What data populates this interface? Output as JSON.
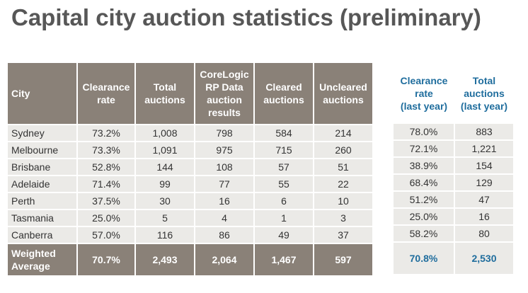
{
  "title": "Capital city auction statistics (preliminary)",
  "headers": {
    "city": "City",
    "clearance_rate": [
      "Clearance",
      "rate"
    ],
    "total_auctions": [
      "Total",
      "auctions"
    ],
    "corelogic": [
      "CoreLogic",
      "RP Data",
      "auction",
      "results"
    ],
    "cleared": [
      "Cleared",
      "auctions"
    ],
    "uncleared": [
      "Uncleared",
      "auctions"
    ],
    "ly_rate": [
      "Clearance",
      "rate",
      "(last year)"
    ],
    "ly_total": [
      "Total",
      "auctions",
      "(last year)"
    ]
  },
  "rows": [
    {
      "city": "Sydney",
      "rate": "73.2%",
      "total": "1,008",
      "core": "798",
      "cleared": "584",
      "uncleared": "214",
      "ly_rate": "78.0%",
      "ly_total": "883"
    },
    {
      "city": "Melbourne",
      "rate": "73.3%",
      "total": "1,091",
      "core": "975",
      "cleared": "715",
      "uncleared": "260",
      "ly_rate": "72.1%",
      "ly_total": "1,221"
    },
    {
      "city": "Brisbane",
      "rate": "52.8%",
      "total": "144",
      "core": "108",
      "cleared": "57",
      "uncleared": "51",
      "ly_rate": "38.9%",
      "ly_total": "154"
    },
    {
      "city": "Adelaide",
      "rate": "71.4%",
      "total": "99",
      "core": "77",
      "cleared": "55",
      "uncleared": "22",
      "ly_rate": "68.4%",
      "ly_total": "129"
    },
    {
      "city": "Perth",
      "rate": "37.5%",
      "total": "30",
      "core": "16",
      "cleared": "6",
      "uncleared": "10",
      "ly_rate": "51.2%",
      "ly_total": "47"
    },
    {
      "city": "Tasmania",
      "rate": "25.0%",
      "total": "5",
      "core": "4",
      "cleared": "1",
      "uncleared": "3",
      "ly_rate": "25.0%",
      "ly_total": "16"
    },
    {
      "city": "Canberra",
      "rate": "57.0%",
      "total": "116",
      "core": "86",
      "cleared": "49",
      "uncleared": "37",
      "ly_rate": "58.2%",
      "ly_total": "80"
    }
  ],
  "average": {
    "label": [
      "Weighted",
      "Average"
    ],
    "rate": "70.7%",
    "total": "2,493",
    "core": "2,064",
    "cleared": "1,467",
    "uncleared": "597",
    "ly_rate": "70.8%",
    "ly_total": "2,530"
  }
}
